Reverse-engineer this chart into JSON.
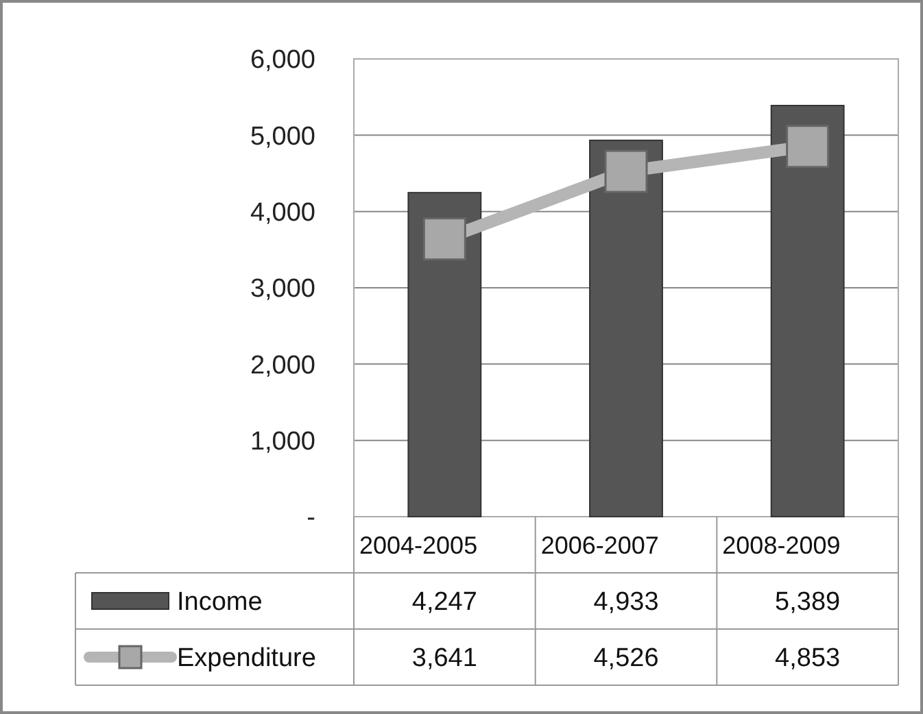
{
  "chart_data": {
    "type": "bar",
    "categories": [
      "2004-2005",
      "2006-2007",
      "2008-2009"
    ],
    "series": [
      {
        "name": "Income",
        "color": "#555555",
        "values": [
          4247,
          4933,
          5389
        ],
        "value_labels": [
          "4,247",
          "4,933",
          "5,389"
        ]
      },
      {
        "name": "Expenditure",
        "type": "line",
        "color": "#b5b5b5",
        "marker": "square",
        "values": [
          3641,
          4526,
          4853
        ],
        "value_labels": [
          "3,641",
          "4,526",
          "4,853"
        ]
      }
    ],
    "ylim": [
      0,
      6000
    ],
    "yticks": [
      {
        "value": 0,
        "label": "-"
      },
      {
        "value": 1000,
        "label": "1,000"
      },
      {
        "value": 2000,
        "label": "2,000"
      },
      {
        "value": 3000,
        "label": "3,000"
      },
      {
        "value": 4000,
        "label": "4,000"
      },
      {
        "value": 5000,
        "label": "5,000"
      },
      {
        "value": 6000,
        "label": "6,000"
      }
    ],
    "grid": "y",
    "legend": "bottom"
  }
}
